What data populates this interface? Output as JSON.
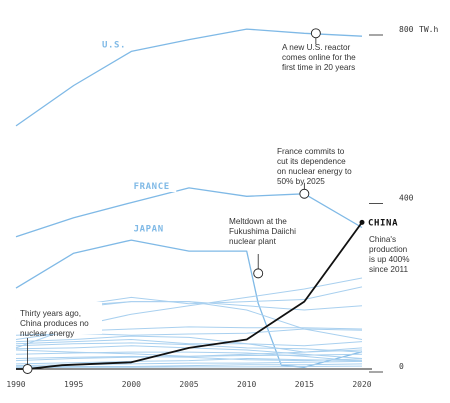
{
  "chart_data": {
    "type": "line",
    "unit_label": "TW.h",
    "x": [
      1990,
      1995,
      2000,
      2005,
      2010,
      2015,
      2020
    ],
    "xlim": [
      1990,
      2020
    ],
    "ylim": [
      0,
      800
    ],
    "y_ticks": [
      0,
      400,
      800
    ],
    "highlight_series": {
      "name": "CHINA",
      "color": "#111111",
      "x": [
        1990,
        1991,
        1994,
        2000,
        2005,
        2010,
        2015,
        2020
      ],
      "values": [
        0,
        0,
        9,
        16,
        50,
        70,
        160,
        348
      ]
    },
    "series": [
      {
        "name": "U.S.",
        "color": "#7fb9e6",
        "x": [
          1990,
          1995,
          2000,
          2005,
          2010,
          2015,
          2020
        ],
        "values": [
          577,
          673,
          754,
          782,
          807,
          797,
          790
        ]
      },
      {
        "name": "FRANCE",
        "color": "#7fb9e6",
        "x": [
          1990,
          1995,
          2000,
          2005,
          2010,
          2015,
          2020
        ],
        "values": [
          314,
          359,
          395,
          430,
          410,
          416,
          336
        ]
      },
      {
        "name": "JAPAN",
        "color": "#7fb9e6",
        "x": [
          1990,
          1995,
          2000,
          2005,
          2010,
          2011,
          2013,
          2015,
          2020
        ],
        "values": [
          192,
          275,
          306,
          280,
          280,
          156,
          9,
          4,
          41
        ]
      },
      {
        "x": [
          1990,
          1995,
          2000,
          2005,
          2010,
          2015,
          2020
        ],
        "values": [
          118,
          150,
          170,
          155,
          160,
          165,
          195
        ],
        "color": "#a9d0ef"
      },
      {
        "x": [
          1990,
          1995,
          2000,
          2005,
          2010,
          2015,
          2020
        ],
        "values": [
          50,
          100,
          130,
          150,
          170,
          190,
          216
        ],
        "color": "#a9d0ef"
      },
      {
        "x": [
          1990,
          1995,
          2000,
          2005,
          2010,
          2015,
          2020
        ],
        "values": [
          140,
          150,
          160,
          160,
          150,
          140,
          150
        ],
        "color": "#a9d0ef"
      },
      {
        "x": [
          1990,
          1995,
          2000,
          2005,
          2010,
          2015,
          2020
        ],
        "values": [
          140,
          145,
          160,
          160,
          140,
          95,
          70
        ],
        "color": "#a9d0ef"
      },
      {
        "x": [
          1990,
          1995,
          2000,
          2005,
          2010,
          2015,
          2020
        ],
        "values": [
          70,
          90,
          95,
          100,
          98,
          98,
          95
        ],
        "color": "#a9d0ef"
      },
      {
        "x": [
          1990,
          1995,
          2000,
          2005,
          2010,
          2015,
          2020
        ],
        "values": [
          80,
          85,
          80,
          83,
          85,
          95,
          92
        ],
        "color": "#a9d0ef"
      },
      {
        "x": [
          1990,
          1995,
          2000,
          2005,
          2010,
          2015,
          2020
        ],
        "values": [
          65,
          70,
          78,
          75,
          60,
          55,
          65
        ],
        "color": "#a9d0ef"
      },
      {
        "x": [
          1990,
          1995,
          2000,
          2005,
          2010,
          2015,
          2020
        ],
        "values": [
          60,
          65,
          70,
          60,
          60,
          40,
          50
        ],
        "color": "#a9d0ef"
      },
      {
        "x": [
          1990,
          1995,
          2000,
          2005,
          2010,
          2015,
          2020
        ],
        "values": [
          55,
          60,
          62,
          58,
          50,
          48,
          40
        ],
        "color": "#a9d0ef"
      },
      {
        "x": [
          1990,
          1995,
          2000,
          2005,
          2010,
          2015,
          2020
        ],
        "values": [
          48,
          50,
          55,
          50,
          45,
          35,
          25
        ],
        "color": "#a9d0ef"
      },
      {
        "x": [
          1990,
          1995,
          2000,
          2005,
          2010,
          2015,
          2020
        ],
        "values": [
          45,
          40,
          36,
          30,
          35,
          40,
          45
        ],
        "color": "#a9d0ef"
      },
      {
        "x": [
          1990,
          1995,
          2000,
          2005,
          2010,
          2015,
          2020
        ],
        "values": [
          35,
          38,
          40,
          40,
          38,
          30,
          18
        ],
        "color": "#a9d0ef"
      },
      {
        "x": [
          1990,
          1995,
          2000,
          2005,
          2010,
          2015,
          2020
        ],
        "values": [
          20,
          25,
          28,
          30,
          32,
          33,
          35
        ],
        "color": "#a9d0ef"
      },
      {
        "x": [
          1990,
          1995,
          2000,
          2005,
          2010,
          2015,
          2020
        ],
        "values": [
          25,
          28,
          30,
          28,
          22,
          20,
          24
        ],
        "color": "#a9d0ef"
      },
      {
        "x": [
          1990,
          1995,
          2000,
          2005,
          2010,
          2015,
          2020
        ],
        "values": [
          12,
          15,
          18,
          20,
          25,
          22,
          20
        ],
        "color": "#a9d0ef"
      },
      {
        "x": [
          1990,
          1995,
          2000,
          2005,
          2010,
          2015,
          2020
        ],
        "values": [
          8,
          10,
          12,
          14,
          14,
          16,
          18
        ],
        "color": "#a9d0ef"
      },
      {
        "x": [
          1990,
          1995,
          2000,
          2005,
          2010,
          2015,
          2020
        ],
        "values": [
          5,
          6,
          6,
          8,
          10,
          10,
          12
        ],
        "color": "#a9d0ef"
      },
      {
        "x": [
          1990,
          1995,
          2000,
          2005,
          2010,
          2015,
          2020
        ],
        "values": [
          3,
          4,
          4,
          5,
          5,
          6,
          7
        ],
        "color": "#a9d0ef"
      }
    ],
    "annotations": [
      {
        "id": "us",
        "lines": [
          "A new U.S. reactor",
          "comes online for the",
          "first time in 20 years"
        ],
        "x": 2016,
        "y": 797
      },
      {
        "id": "france",
        "lines": [
          "France commits to",
          "cut its dependence",
          "on nuclear energy to",
          "50% by 2025"
        ],
        "x": 2015,
        "y": 416
      },
      {
        "id": "japan",
        "lines": [
          "Meltdown at the",
          "Fukushima Daiichi",
          "nuclear plant"
        ],
        "x": 2011,
        "y": 227
      },
      {
        "id": "china",
        "lines": [
          "China's",
          "production",
          "is up 400%",
          "since 2011"
        ],
        "x": 2020,
        "y": 348
      },
      {
        "id": "start",
        "lines": [
          "Thirty years ago,",
          "China produces no",
          "nuclear energy"
        ],
        "x": 1991,
        "y": 0
      }
    ]
  }
}
